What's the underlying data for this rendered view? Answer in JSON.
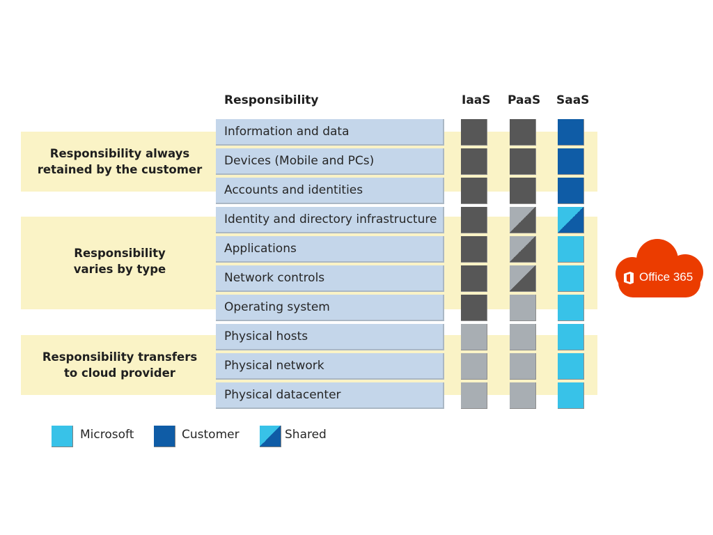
{
  "header": {
    "responsibility": "Responsibility"
  },
  "columns": [
    {
      "key": "iaas",
      "label": "IaaS"
    },
    {
      "key": "paas",
      "label": "PaaS"
    },
    {
      "key": "saas",
      "label": "SaaS"
    }
  ],
  "groups": [
    {
      "line1": "Responsibility always",
      "line2": "retained by the customer"
    },
    {
      "line1": "Responsibility",
      "line2": "varies by type"
    },
    {
      "line1": "Responsibility transfers",
      "line2": "to cloud provider"
    }
  ],
  "rows": [
    {
      "label": "Information and data",
      "iaas": "customer-onprem",
      "paas": "customer-onprem",
      "saas": "customer"
    },
    {
      "label": "Devices (Mobile and PCs)",
      "iaas": "customer-onprem",
      "paas": "customer-onprem",
      "saas": "customer"
    },
    {
      "label": "Accounts and identities",
      "iaas": "customer-onprem",
      "paas": "customer-onprem",
      "saas": "customer"
    },
    {
      "label": "Identity and directory infrastructure",
      "iaas": "customer-onprem",
      "paas": "shared-gray",
      "saas": "shared"
    },
    {
      "label": "Applications",
      "iaas": "customer-onprem",
      "paas": "shared-gray",
      "saas": "microsoft"
    },
    {
      "label": "Network controls",
      "iaas": "customer-onprem",
      "paas": "shared-gray",
      "saas": "microsoft"
    },
    {
      "label": "Operating system",
      "iaas": "customer-onprem",
      "paas": "provider-gray",
      "saas": "microsoft"
    },
    {
      "label": "Physical hosts",
      "iaas": "provider-gray",
      "paas": "provider-gray",
      "saas": "microsoft"
    },
    {
      "label": "Physical network",
      "iaas": "provider-gray",
      "paas": "provider-gray",
      "saas": "microsoft"
    },
    {
      "label": "Physical datacenter",
      "iaas": "provider-gray",
      "paas": "provider-gray",
      "saas": "microsoft"
    }
  ],
  "legend": [
    {
      "label": "Microsoft",
      "kind": "microsoft"
    },
    {
      "label": "Customer",
      "kind": "customer"
    },
    {
      "label": "Shared",
      "kind": "shared"
    }
  ],
  "badge": {
    "label": "Office 365",
    "color": "#eb3c00",
    "icon": "office-icon"
  },
  "colors": {
    "band": "#faf3c6",
    "row": "#c4d6ea",
    "microsoft": "#38c2e8",
    "customer": "#0f5ca6",
    "customer-onprem": "#575757",
    "provider-gray": "#a8aeb3"
  }
}
